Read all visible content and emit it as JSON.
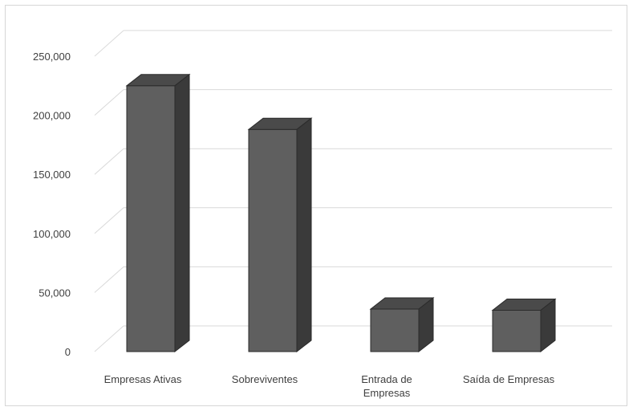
{
  "chart_data": {
    "type": "bar",
    "style": "3d-column",
    "categories": [
      "Empresas Ativas",
      "Sobreviventes",
      "Entrada de Empresas",
      "Saída de Empresas"
    ],
    "category_label_lines": [
      [
        "Empresas Ativas"
      ],
      [
        "Sobreviventes"
      ],
      [
        "Entrada de",
        "Empresas"
      ],
      [
        "Saída de Empresas"
      ]
    ],
    "values": [
      225000,
      188000,
      36000,
      35000
    ],
    "yticks": [
      "0",
      "50,000",
      "100,000",
      "150,000",
      "200,000",
      "250,000"
    ],
    "ylim": [
      0,
      250000
    ],
    "title": "",
    "xlabel": "",
    "ylabel": "",
    "grid": true,
    "legend": "none",
    "colors": {
      "front": "#5f5f5f",
      "top": "#4a4a4a",
      "side": "#3a3a3a",
      "grid": "#d9d9d9",
      "outline": "#2b2b2b"
    }
  }
}
